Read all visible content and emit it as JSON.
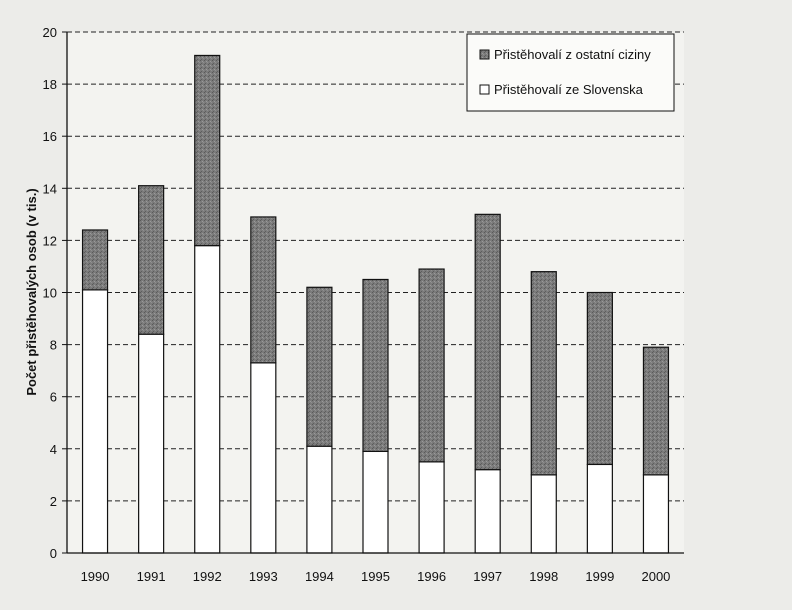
{
  "chart_data": {
    "type": "bar",
    "stacked": true,
    "title": "",
    "xlabel": "",
    "ylabel": "Počet přistěhovalých osob (v tis.)",
    "ylim": [
      0,
      20
    ],
    "yticks": [
      0,
      2,
      4,
      6,
      8,
      10,
      12,
      14,
      16,
      18,
      20
    ],
    "grid": true,
    "legend_position": "top-right",
    "categories": [
      "1990",
      "1991",
      "1992",
      "1993",
      "1994",
      "1995",
      "1996",
      "1997",
      "1998",
      "1999",
      "2000"
    ],
    "series": [
      {
        "name": "Přistěhovalí ze Slovenska",
        "color": "#ffffff",
        "values": [
          10.1,
          8.4,
          11.8,
          7.3,
          4.1,
          3.9,
          3.5,
          3.2,
          3.0,
          3.4,
          3.0
        ]
      },
      {
        "name": "Přistěhovalí z ostatní ciziny",
        "color": "#7b7b7b",
        "values": [
          2.3,
          5.7,
          7.3,
          5.6,
          6.1,
          6.6,
          7.4,
          9.8,
          7.8,
          6.6,
          4.9
        ]
      }
    ],
    "legend_order": [
      1,
      0
    ]
  }
}
